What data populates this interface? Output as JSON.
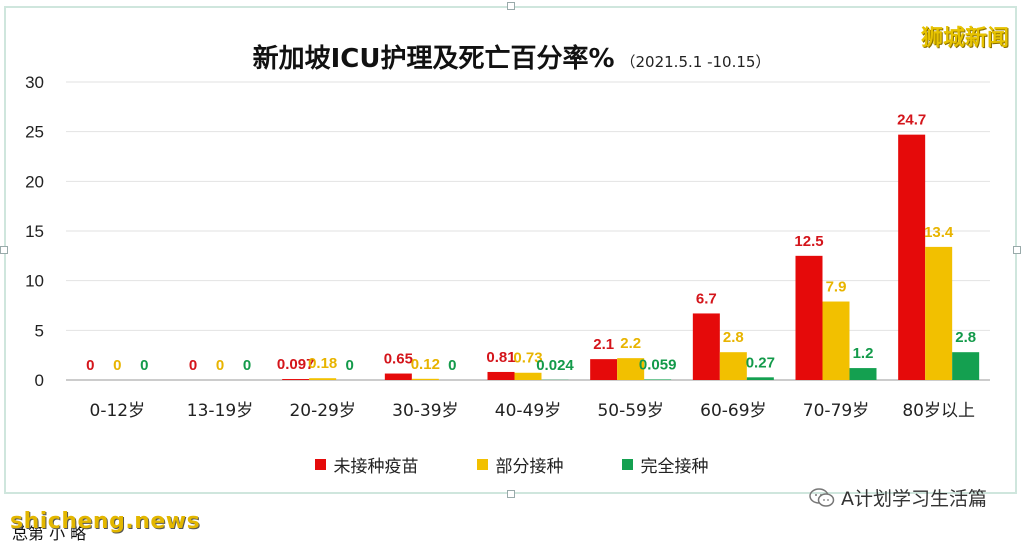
{
  "chart_data": {
    "type": "bar",
    "title": "新加坡ICU护理及死亡百分率%",
    "subtitle": "（2021.5.1 -10.15）",
    "categories": [
      "0-12岁",
      "13-19岁",
      "20-29岁",
      "30-39岁",
      "40-49岁",
      "50-59岁",
      "60-69岁",
      "70-79岁",
      "80岁以上"
    ],
    "series": [
      {
        "name": "未接种疫苗",
        "color": "#e50a0a",
        "labelColor": "#d4151b",
        "values": [
          0,
          0,
          0.097,
          0.65,
          0.81,
          2.1,
          6.7,
          12.5,
          24.7
        ],
        "labels": [
          "0",
          "0",
          "0.097",
          "0.65",
          "0.81",
          "2.1",
          "6.7",
          "12.5",
          "24.7"
        ]
      },
      {
        "name": "部分接种",
        "color": "#f2c000",
        "labelColor": "#e8b400",
        "values": [
          0,
          0,
          0.18,
          0.12,
          0.73,
          2.2,
          2.8,
          7.9,
          13.4
        ],
        "labels": [
          "0",
          "0",
          "0.18",
          "0.12",
          "0.73",
          "2.2",
          "2.8",
          "7.9",
          "13.4"
        ]
      },
      {
        "name": "完全接种",
        "color": "#14a050",
        "labelColor": "#139a4a",
        "values": [
          0,
          0,
          0,
          0,
          0.024,
          0.059,
          0.27,
          1.2,
          2.8
        ],
        "labels": [
          "0",
          "0",
          "0",
          "0",
          "0.024",
          "0.059",
          "0.27",
          "1.2",
          "2.8"
        ]
      }
    ],
    "yticks": [
      "0",
      "5",
      "10",
      "15",
      "20",
      "25",
      "30"
    ],
    "ylim": [
      0,
      30
    ],
    "grid": true,
    "legend_position": "bottom"
  },
  "brand_top": "狮城新闻",
  "wechat_label": "A计划学习生活篇",
  "watermark": "shicheng.news",
  "corner_text": "总第 小 略"
}
